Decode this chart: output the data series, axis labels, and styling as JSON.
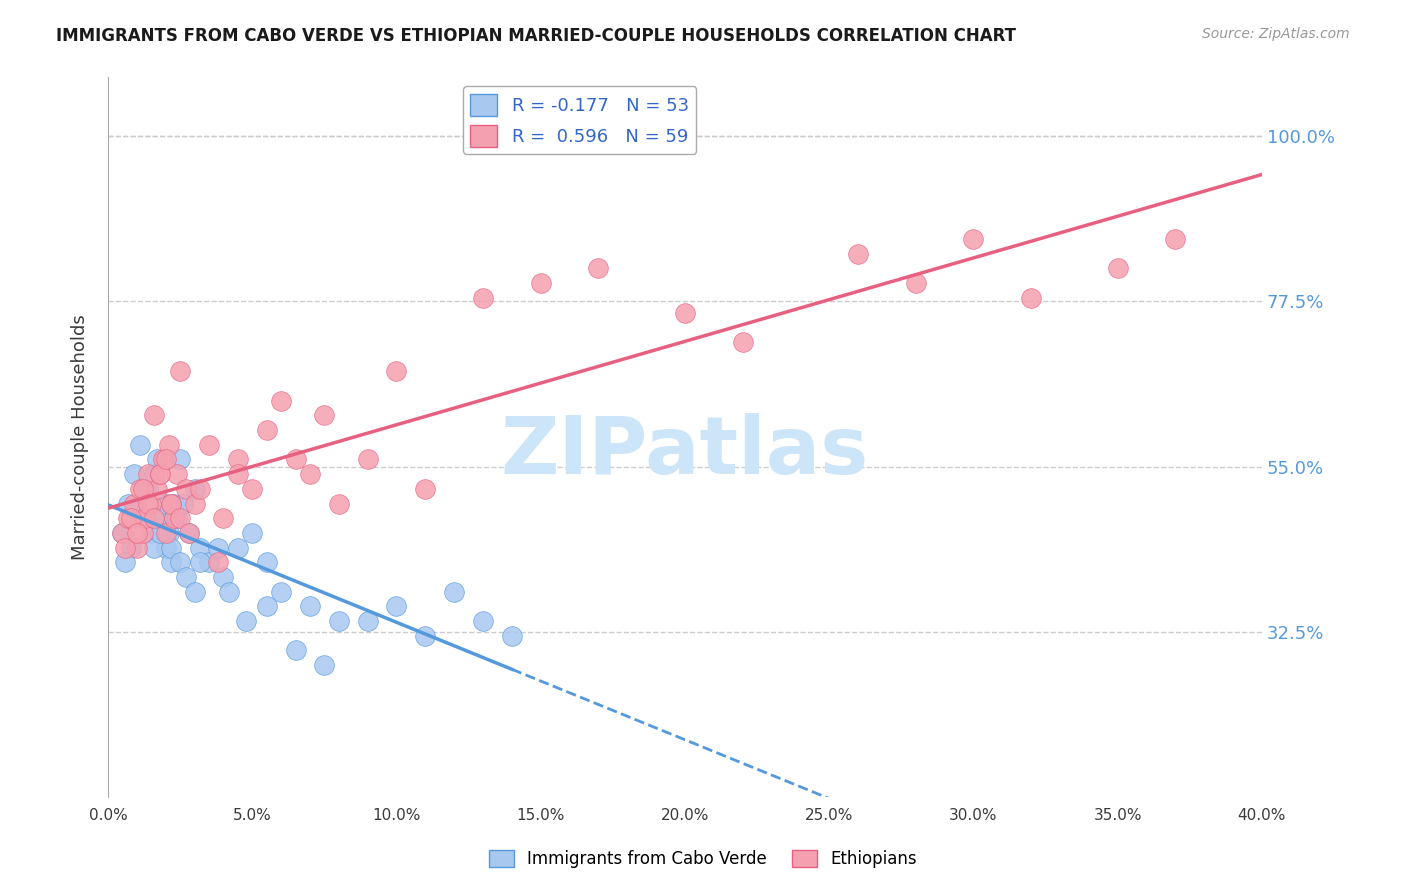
{
  "title": "IMMIGRANTS FROM CABO VERDE VS ETHIOPIAN MARRIED-COUPLE HOUSEHOLDS CORRELATION CHART",
  "source": "Source: ZipAtlas.com",
  "ylabel": "Married-couple Households",
  "yticks": [
    "100.0%",
    "77.5%",
    "55.0%",
    "32.5%"
  ],
  "ytick_vals": [
    1.0,
    0.775,
    0.55,
    0.325
  ],
  "cabo_verde_color": "#a8c8f0",
  "cabo_verde_line_color": "#5599dd",
  "ethiopian_color": "#f5a0b0",
  "ethiopian_line_color": "#e86080",
  "grid_color": "#cccccc",
  "background_color": "#ffffff",
  "watermark_color": "#cce5f8",
  "cabo_verde_x": [
    0.8,
    1.0,
    1.2,
    1.4,
    1.5,
    1.6,
    1.7,
    1.9,
    2.0,
    2.1,
    2.2,
    2.3,
    2.4,
    2.5,
    2.6,
    2.8,
    3.0,
    3.2,
    3.5,
    4.0,
    4.5,
    5.0,
    5.5,
    6.0,
    7.0,
    8.0,
    9.0,
    10.0,
    12.0,
    14.0,
    0.5,
    0.6,
    0.7,
    0.9,
    1.1,
    1.3,
    1.6,
    1.7,
    1.8,
    2.0,
    2.2,
    2.5,
    2.7,
    3.0,
    3.2,
    3.8,
    4.2,
    4.8,
    5.5,
    6.5,
    7.5,
    11.0,
    13.0
  ],
  "cabo_verde_y": [
    0.44,
    0.5,
    0.48,
    0.52,
    0.46,
    0.54,
    0.56,
    0.48,
    0.44,
    0.46,
    0.42,
    0.5,
    0.48,
    0.56,
    0.5,
    0.46,
    0.52,
    0.44,
    0.42,
    0.4,
    0.44,
    0.46,
    0.42,
    0.38,
    0.36,
    0.34,
    0.34,
    0.36,
    0.38,
    0.32,
    0.46,
    0.42,
    0.5,
    0.54,
    0.58,
    0.52,
    0.44,
    0.48,
    0.46,
    0.5,
    0.44,
    0.42,
    0.4,
    0.38,
    0.42,
    0.44,
    0.38,
    0.34,
    0.36,
    0.3,
    0.28,
    0.32,
    0.34
  ],
  "ethiopian_x": [
    0.5,
    0.7,
    0.9,
    1.0,
    1.1,
    1.2,
    1.3,
    1.4,
    1.5,
    1.6,
    1.7,
    1.8,
    1.9,
    2.0,
    2.1,
    2.2,
    2.3,
    2.4,
    2.5,
    2.7,
    3.0,
    3.5,
    4.0,
    4.5,
    5.0,
    6.0,
    7.0,
    8.0,
    9.0,
    11.0,
    0.6,
    0.8,
    1.0,
    1.2,
    1.4,
    1.6,
    1.8,
    2.0,
    2.2,
    2.5,
    2.8,
    3.2,
    3.8,
    4.5,
    5.5,
    6.5,
    7.5,
    10.0,
    13.0,
    15.0,
    17.0,
    20.0,
    22.0,
    26.0,
    28.0,
    30.0,
    32.0,
    35.0,
    37.0
  ],
  "ethiopian_y": [
    0.46,
    0.48,
    0.5,
    0.44,
    0.52,
    0.46,
    0.48,
    0.54,
    0.5,
    0.62,
    0.52,
    0.54,
    0.56,
    0.46,
    0.58,
    0.5,
    0.48,
    0.54,
    0.68,
    0.52,
    0.5,
    0.58,
    0.48,
    0.56,
    0.52,
    0.64,
    0.54,
    0.5,
    0.56,
    0.52,
    0.44,
    0.48,
    0.46,
    0.52,
    0.5,
    0.48,
    0.54,
    0.56,
    0.5,
    0.48,
    0.46,
    0.52,
    0.42,
    0.54,
    0.6,
    0.56,
    0.62,
    0.68,
    0.78,
    0.8,
    0.82,
    0.76,
    0.72,
    0.84,
    0.8,
    0.86,
    0.78,
    0.82,
    0.86
  ]
}
